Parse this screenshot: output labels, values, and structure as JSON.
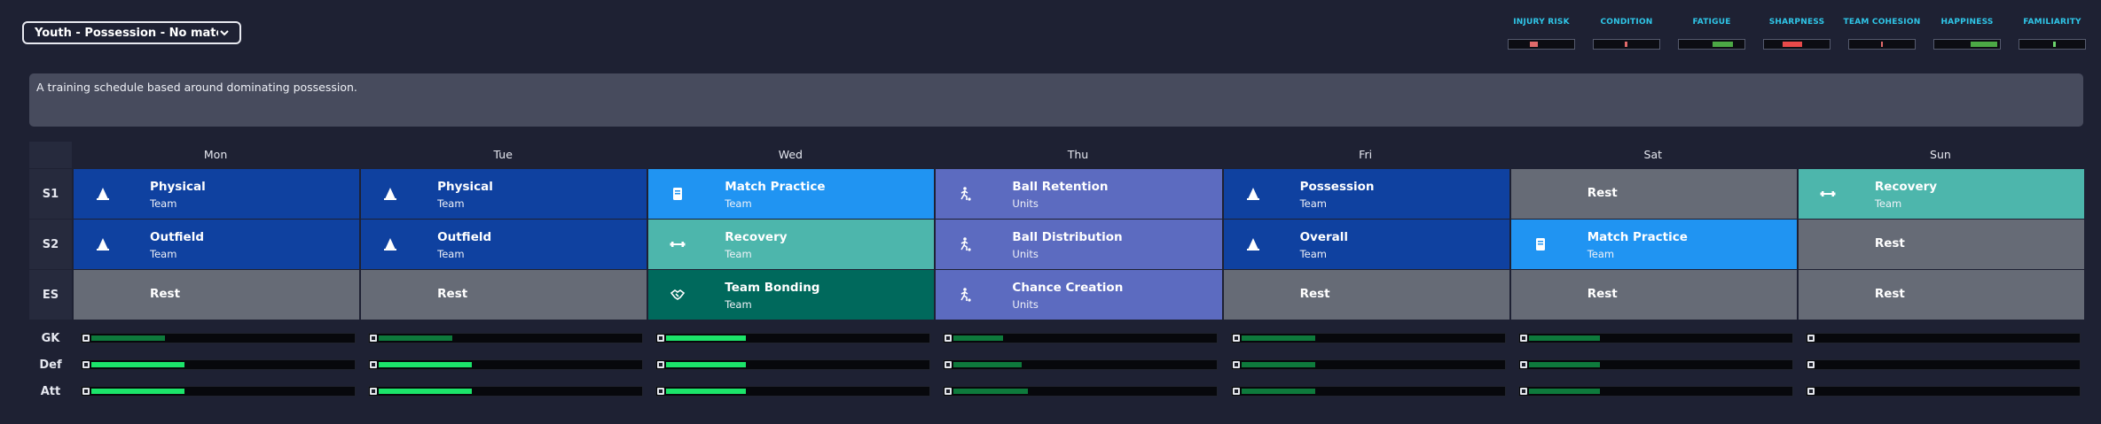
{
  "schedule_select": {
    "label": "Youth - Possession - No matc..."
  },
  "meters": [
    {
      "name": "INJURY RISK",
      "color": "#e06a6a",
      "start": 0.32,
      "end": 0.45
    },
    {
      "name": "CONDITION",
      "color": "#e06a6a",
      "start": 0.47,
      "end": 0.52
    },
    {
      "name": "FATIGUE",
      "color": "#4ca845",
      "start": 0.52,
      "end": 0.82
    },
    {
      "name": "SHARPNESS",
      "color": "#e84a4a",
      "start": 0.28,
      "end": 0.58
    },
    {
      "name": "TEAM COHESION",
      "color": "#e06a6a",
      "start": 0.48,
      "end": 0.52
    },
    {
      "name": "HAPPINESS",
      "color": "#4ca845",
      "start": 0.55,
      "end": 0.96
    },
    {
      "name": "FAMILIARITY",
      "color": "#6cd36c",
      "start": 0.51,
      "end": 0.56
    }
  ],
  "description": "A training schedule based around dominating possession.",
  "days": [
    "Mon",
    "Tue",
    "Wed",
    "Thu",
    "Fri",
    "Sat",
    "Sun"
  ],
  "colors": {
    "general": "#0f41a0",
    "match": "#2094f2",
    "recovery": "#4db6ac",
    "units": "#5c6bc0",
    "bonding": "#00695c",
    "rest": "#666b76"
  },
  "sessions": [
    {
      "label": "S1",
      "cells": [
        {
          "name": "Physical",
          "sub": "Team",
          "type": "general",
          "icon": "cone-icon"
        },
        {
          "name": "Physical",
          "sub": "Team",
          "type": "general",
          "icon": "cone-icon"
        },
        {
          "name": "Match Practice",
          "sub": "Team",
          "type": "match",
          "icon": "tactics-board-icon"
        },
        {
          "name": "Ball Retention",
          "sub": "Units",
          "type": "units",
          "icon": "player-ball-icon"
        },
        {
          "name": "Possession",
          "sub": "Team",
          "type": "general",
          "icon": "cone-icon"
        },
        {
          "name": "Rest",
          "sub": "",
          "type": "rest",
          "icon": ""
        },
        {
          "name": "Recovery",
          "sub": "Team",
          "type": "recovery",
          "icon": "dumbbell-icon"
        }
      ]
    },
    {
      "label": "S2",
      "cells": [
        {
          "name": "Outfield",
          "sub": "Team",
          "type": "general",
          "icon": "cone-icon"
        },
        {
          "name": "Outfield",
          "sub": "Team",
          "type": "general",
          "icon": "cone-icon"
        },
        {
          "name": "Recovery",
          "sub": "Team",
          "type": "recovery",
          "icon": "dumbbell-icon"
        },
        {
          "name": "Ball Distribution",
          "sub": "Units",
          "type": "units",
          "icon": "player-ball-icon"
        },
        {
          "name": "Overall",
          "sub": "Team",
          "type": "general",
          "icon": "cone-icon"
        },
        {
          "name": "Match Practice",
          "sub": "Team",
          "type": "match",
          "icon": "tactics-board-icon"
        },
        {
          "name": "Rest",
          "sub": "",
          "type": "rest",
          "icon": ""
        }
      ]
    },
    {
      "label": "ES",
      "cells": [
        {
          "name": "Rest",
          "sub": "",
          "type": "rest",
          "icon": ""
        },
        {
          "name": "Rest",
          "sub": "",
          "type": "rest",
          "icon": ""
        },
        {
          "name": "Team Bonding",
          "sub": "Team",
          "type": "bonding",
          "icon": "handshake-icon"
        },
        {
          "name": "Chance Creation",
          "sub": "Units",
          "type": "units",
          "icon": "player-ball-icon"
        },
        {
          "name": "Rest",
          "sub": "",
          "type": "rest",
          "icon": ""
        },
        {
          "name": "Rest",
          "sub": "",
          "type": "rest",
          "icon": ""
        },
        {
          "name": "Rest",
          "sub": "",
          "type": "rest",
          "icon": ""
        }
      ]
    }
  ],
  "workload": [
    {
      "label": "GK",
      "values": [
        {
          "level": 0.27,
          "color": "#0e7a3c"
        },
        {
          "level": 0.27,
          "color": "#0e7a3c"
        },
        {
          "level": 0.29,
          "color": "#1ce46a"
        },
        {
          "level": 0.18,
          "color": "#0e7a3c"
        },
        {
          "level": 0.27,
          "color": "#0e7a3c"
        },
        {
          "level": 0.26,
          "color": "#0e7a3c"
        },
        {
          "level": 0.0,
          "color": "#0e7a3c"
        }
      ]
    },
    {
      "label": "Def",
      "values": [
        {
          "level": 0.34,
          "color": "#1ce46a"
        },
        {
          "level": 0.34,
          "color": "#1ce46a"
        },
        {
          "level": 0.29,
          "color": "#1ce46a"
        },
        {
          "level": 0.25,
          "color": "#0e7a3c"
        },
        {
          "level": 0.27,
          "color": "#0e7a3c"
        },
        {
          "level": 0.26,
          "color": "#0e7a3c"
        },
        {
          "level": 0.0,
          "color": "#0e7a3c"
        }
      ]
    },
    {
      "label": "Att",
      "values": [
        {
          "level": 0.34,
          "color": "#1ce46a"
        },
        {
          "level": 0.34,
          "color": "#1ce46a"
        },
        {
          "level": 0.29,
          "color": "#1ce46a"
        },
        {
          "level": 0.27,
          "color": "#0e7a3c"
        },
        {
          "level": 0.27,
          "color": "#0e7a3c"
        },
        {
          "level": 0.26,
          "color": "#0e7a3c"
        },
        {
          "level": 0.0,
          "color": "#0e7a3c"
        }
      ]
    }
  ]
}
